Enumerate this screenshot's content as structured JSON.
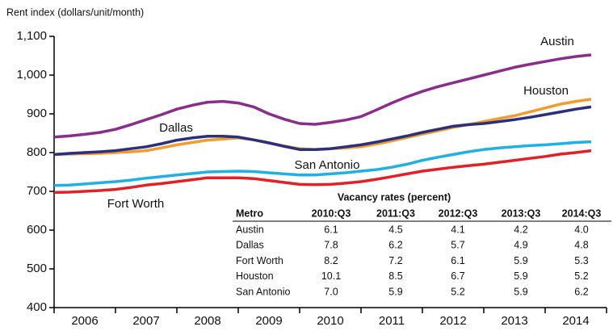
{
  "chart_data": {
    "type": "line",
    "y_label": "Rent index (dollars/unit/month)",
    "x": [
      2006,
      2006.25,
      2006.5,
      2006.75,
      2007,
      2007.25,
      2007.5,
      2007.75,
      2008,
      2008.25,
      2008.5,
      2008.75,
      2009,
      2009.25,
      2009.5,
      2009.75,
      2010,
      2010.25,
      2010.5,
      2010.75,
      2011,
      2011.25,
      2011.5,
      2011.75,
      2012,
      2012.25,
      2012.5,
      2012.75,
      2013,
      2013.25,
      2013.5,
      2013.75,
      2014,
      2014.25,
      2014.5,
      2014.75
    ],
    "xlim": [
      2006,
      2015
    ],
    "xticks": [
      {
        "value": 2006.5,
        "label": "2006"
      },
      {
        "value": 2007.5,
        "label": "2007"
      },
      {
        "value": 2008.5,
        "label": "2008"
      },
      {
        "value": 2009.5,
        "label": "2009"
      },
      {
        "value": 2010.5,
        "label": "2010"
      },
      {
        "value": 2011.5,
        "label": "2011"
      },
      {
        "value": 2012.5,
        "label": "2012"
      },
      {
        "value": 2013.5,
        "label": "2013"
      },
      {
        "value": 2014.5,
        "label": "2014"
      }
    ],
    "ylim": [
      400,
      1100
    ],
    "yticks": [
      400,
      500,
      600,
      700,
      800,
      900,
      {
        "value": 1000,
        "label": "1,000"
      },
      {
        "value": 1100,
        "label": "1,100"
      }
    ],
    "series": [
      {
        "name": "Austin",
        "color": "#8b2c8c",
        "values": [
          840,
          843,
          847,
          852,
          860,
          872,
          885,
          898,
          912,
          922,
          930,
          932,
          928,
          918,
          900,
          886,
          875,
          873,
          878,
          884,
          893,
          910,
          928,
          944,
          958,
          970,
          980,
          990,
          1000,
          1010,
          1020,
          1028,
          1035,
          1042,
          1048,
          1052
        ]
      },
      {
        "name": "Houston",
        "color": "#f39c2e",
        "values": [
          795,
          796,
          797,
          798,
          800,
          802,
          805,
          812,
          820,
          826,
          832,
          835,
          838,
          833,
          825,
          817,
          810,
          808,
          810,
          812,
          815,
          822,
          830,
          839,
          848,
          856,
          865,
          872,
          880,
          888,
          895,
          905,
          915,
          925,
          932,
          938
        ]
      },
      {
        "name": "Dallas",
        "color": "#2a2f7e",
        "values": [
          795,
          798,
          800,
          802,
          805,
          810,
          815,
          823,
          832,
          838,
          842,
          842,
          840,
          833,
          825,
          816,
          808,
          808,
          810,
          815,
          820,
          827,
          835,
          843,
          852,
          860,
          868,
          872,
          875,
          880,
          885,
          891,
          898,
          905,
          912,
          918
        ]
      },
      {
        "name": "San Antonio",
        "color": "#1fb0e6",
        "values": [
          715,
          716,
          719,
          722,
          725,
          729,
          734,
          738,
          742,
          746,
          750,
          751,
          752,
          751,
          748,
          745,
          742,
          742,
          745,
          748,
          752,
          756,
          762,
          770,
          780,
          788,
          795,
          802,
          808,
          812,
          815,
          818,
          820,
          823,
          826,
          828
        ]
      },
      {
        "name": "Fort Worth",
        "color": "#e41f26",
        "values": [
          697,
          698,
          700,
          702,
          705,
          710,
          716,
          720,
          725,
          730,
          735,
          735,
          735,
          733,
          728,
          723,
          718,
          717,
          718,
          721,
          725,
          731,
          738,
          745,
          752,
          757,
          762,
          766,
          770,
          775,
          780,
          785,
          790,
          796,
          800,
          805
        ]
      }
    ]
  },
  "table": {
    "title": "Vacancy rates (percent)",
    "header": [
      "Metro",
      "2010:Q3",
      "2011:Q3",
      "2012:Q3",
      "2013:Q3",
      "2014:Q3"
    ],
    "rows": [
      [
        "Austin",
        "6.1",
        "4.5",
        "4.1",
        "4.2",
        "4.0"
      ],
      [
        "Dallas",
        "7.8",
        "6.2",
        "5.7",
        "4.9",
        "4.8"
      ],
      [
        "Fort Worth",
        "8.2",
        "7.2",
        "6.1",
        "5.9",
        "5.3"
      ],
      [
        "Houston",
        "10.1",
        "8.5",
        "6.7",
        "5.9",
        "5.2"
      ],
      [
        "San Antonio",
        "7.0",
        "5.9",
        "5.2",
        "5.9",
        "6.2"
      ]
    ]
  }
}
